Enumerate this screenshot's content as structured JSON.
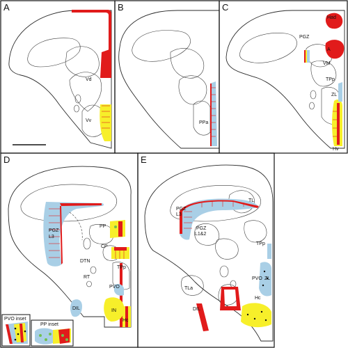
{
  "panels": [
    {
      "letter": "A",
      "labels": [
        "Vd",
        "Vv"
      ]
    },
    {
      "letter": "B",
      "labels": [
        "PPa"
      ]
    },
    {
      "letter": "C",
      "labels": [
        "Had",
        "PGZ",
        "A",
        "VM",
        "TPp",
        "ZL",
        "Hv"
      ]
    },
    {
      "letter": "D",
      "labels": [
        "PGZ",
        "L3",
        "PP",
        "CP",
        "DTN",
        "TPp",
        "RT",
        "PVO",
        "DIL",
        "IN",
        "Hc"
      ]
    },
    {
      "letter": "E",
      "labels": [
        "TL",
        "PGZ",
        "L3",
        "PGZ",
        "L1&2",
        "TPp",
        "PVO",
        "ZL",
        "TLa",
        "Hc",
        "DIL"
      ]
    }
  ],
  "insets": {
    "pvo": "PVO inset",
    "pp": "PP inset"
  },
  "colors": {
    "red": "#e11b1b",
    "yellow": "#f7ef2a",
    "blue": "#a9cfe6"
  }
}
